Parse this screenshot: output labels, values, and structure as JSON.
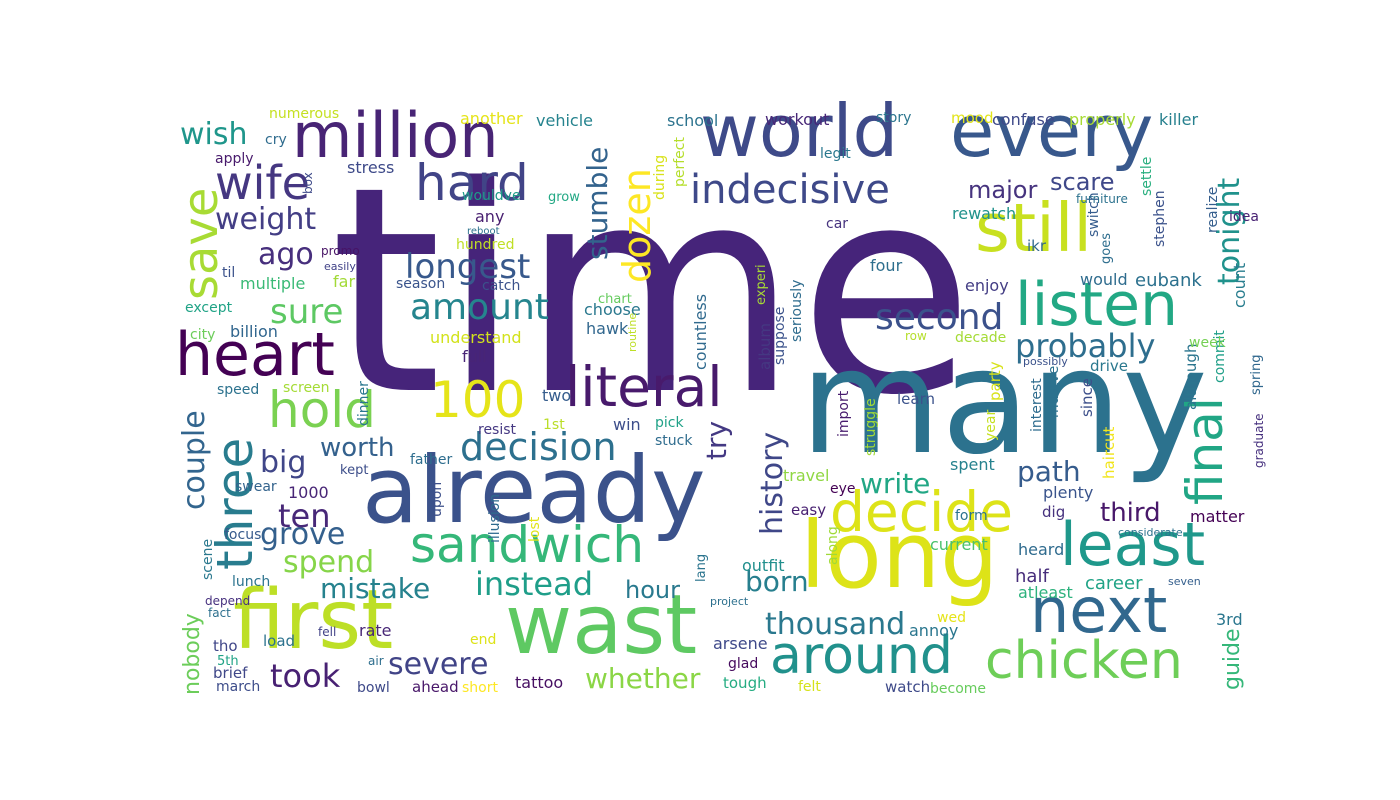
{
  "words": [
    {
      "text": "time",
      "color": "#46247a"
    },
    {
      "text": "many",
      "color": "#2c728e"
    },
    {
      "text": "already",
      "color": "#3b528b"
    },
    {
      "text": "long",
      "color": "#dde318"
    },
    {
      "text": "first",
      "color": "#bddf26"
    },
    {
      "text": "wast",
      "color": "#5ec962"
    },
    {
      "text": "world",
      "color": "#3e4a89"
    },
    {
      "text": "every",
      "color": "#38588c"
    },
    {
      "text": "still",
      "color": "#c8e020"
    },
    {
      "text": "million",
      "color": "#482475"
    },
    {
      "text": "heart",
      "color": "#440154"
    },
    {
      "text": "literal",
      "color": "#481a6c"
    },
    {
      "text": "hard",
      "color": "#414487"
    },
    {
      "text": "wife",
      "color": "#453781"
    },
    {
      "text": "next",
      "color": "#31688e"
    },
    {
      "text": "around",
      "color": "#21918c"
    },
    {
      "text": "chicken",
      "color": "#6ece58"
    },
    {
      "text": "least",
      "color": "#1f988b"
    },
    {
      "text": "sandwich",
      "color": "#35b779"
    },
    {
      "text": "decide",
      "color": "#dde318"
    },
    {
      "text": "listen",
      "color": "#22a884"
    },
    {
      "text": "100",
      "color": "#e5e419"
    },
    {
      "text": "hold",
      "color": "#7ad151"
    },
    {
      "text": "three",
      "color": "#287c8e"
    },
    {
      "text": "save",
      "color": "#a8db34"
    },
    {
      "text": "final",
      "color": "#21a685"
    },
    {
      "text": "indecisive",
      "color": "#3e4989"
    },
    {
      "text": "decision",
      "color": "#2d708e"
    },
    {
      "text": "dozen",
      "color": "#fde725"
    },
    {
      "text": "amount",
      "color": "#25858e"
    },
    {
      "text": "second",
      "color": "#3b518b"
    },
    {
      "text": "longest",
      "color": "#38598c"
    },
    {
      "text": "sure",
      "color": "#5dc863"
    },
    {
      "text": "probably",
      "color": "#2e6e8e"
    },
    {
      "text": "instead",
      "color": "#1f9e89"
    },
    {
      "text": "mistake",
      "color": "#26828e"
    },
    {
      "text": "spend",
      "color": "#86d549"
    },
    {
      "text": "thousand",
      "color": "#2a788e"
    },
    {
      "text": "tonight",
      "color": "#20928c"
    },
    {
      "text": "weight",
      "color": "#433e85"
    },
    {
      "text": "ago",
      "color": "#472f7d"
    },
    {
      "text": "wish",
      "color": "#1f968b"
    },
    {
      "text": "couple",
      "color": "#32658e"
    },
    {
      "text": "big",
      "color": "#404688"
    },
    {
      "text": "worth",
      "color": "#34618d"
    },
    {
      "text": "grove",
      "color": "#34608d"
    },
    {
      "text": "ten",
      "color": "#482878"
    },
    {
      "text": "took",
      "color": "#482173"
    },
    {
      "text": "severe",
      "color": "#414487"
    },
    {
      "text": "whether",
      "color": "#8bd646"
    },
    {
      "text": "born",
      "color": "#277f8e"
    },
    {
      "text": "history",
      "color": "#3f4788"
    },
    {
      "text": "try",
      "color": "#443983"
    },
    {
      "text": "stumble",
      "color": "#33638d"
    },
    {
      "text": "path",
      "color": "#365c8d"
    },
    {
      "text": "write",
      "color": "#22a785"
    },
    {
      "text": "third",
      "color": "#48186a"
    },
    {
      "text": "major",
      "color": "#46337e"
    },
    {
      "text": "scare",
      "color": "#3f4889"
    },
    {
      "text": "hour",
      "color": "#29798e"
    },
    {
      "text": "nobody",
      "color": "#6ccd5a"
    },
    {
      "text": "guide",
      "color": "#35b779"
    },
    {
      "text": "half",
      "color": "#472d7b"
    },
    {
      "text": "career",
      "color": "#20a386"
    },
    {
      "text": "atleast",
      "color": "#2db27d"
    },
    {
      "text": "3rd",
      "color": "#2a768e"
    },
    {
      "text": "eubank",
      "color": "#2c718e"
    },
    {
      "text": "would",
      "color": "#2f6c8e"
    },
    {
      "text": "enjoy",
      "color": "#433d84"
    },
    {
      "text": "four",
      "color": "#2e6f8e"
    },
    {
      "text": "multiple",
      "color": "#3aba76"
    },
    {
      "text": "far",
      "color": "#a2da37"
    },
    {
      "text": "billion",
      "color": "#31668e"
    },
    {
      "text": "city",
      "color": "#6ccd5a"
    },
    {
      "text": "except",
      "color": "#20a386"
    },
    {
      "text": "speed",
      "color": "#2c728e"
    },
    {
      "text": "screen",
      "color": "#a5db36"
    },
    {
      "text": "dinner",
      "color": "#2a778e"
    },
    {
      "text": "father",
      "color": "#2e6d8e"
    },
    {
      "text": "1000",
      "color": "#482576"
    },
    {
      "text": "kept",
      "color": "#3d4e8a"
    },
    {
      "text": "swear",
      "color": "#33638d"
    },
    {
      "text": "upon",
      "color": "#3c4f8a"
    },
    {
      "text": "scene",
      "color": "#2a788e"
    },
    {
      "text": "focus",
      "color": "#375a8c"
    },
    {
      "text": "lunch",
      "color": "#2c738e"
    },
    {
      "text": "depend",
      "color": "#46307e"
    },
    {
      "text": "fact",
      "color": "#2d708e"
    },
    {
      "text": "tho",
      "color": "#404688"
    },
    {
      "text": "5th",
      "color": "#20a386"
    },
    {
      "text": "brief",
      "color": "#3f4788"
    },
    {
      "text": "march",
      "color": "#3d4d8a"
    },
    {
      "text": "load",
      "color": "#2c728e"
    },
    {
      "text": "fell",
      "color": "#414287"
    },
    {
      "text": "rate",
      "color": "#482777"
    },
    {
      "text": "air",
      "color": "#2e6e8e"
    },
    {
      "text": "bowl",
      "color": "#3e4989"
    },
    {
      "text": "ahead",
      "color": "#481769"
    },
    {
      "text": "short",
      "color": "#fde725"
    },
    {
      "text": "tattoo",
      "color": "#471063"
    },
    {
      "text": "end",
      "color": "#dde318"
    },
    {
      "text": "lost",
      "color": "#e2e418"
    },
    {
      "text": "illusion",
      "color": "#2f6b8e"
    },
    {
      "text": "win",
      "color": "#3d4e8a"
    },
    {
      "text": "pick",
      "color": "#1fa187"
    },
    {
      "text": "stuck",
      "color": "#2f6c8e"
    },
    {
      "text": "resist",
      "color": "#453882"
    },
    {
      "text": "1st",
      "color": "#bade28"
    },
    {
      "text": "two",
      "color": "#365d8d"
    },
    {
      "text": "full",
      "color": "#482576"
    },
    {
      "text": "understand",
      "color": "#d2e21b"
    },
    {
      "text": "hawk",
      "color": "#31678e"
    },
    {
      "text": "choose",
      "color": "#2a788e"
    },
    {
      "text": "chart",
      "color": "#65cb5e"
    },
    {
      "text": "catch",
      "color": "#3b528b"
    },
    {
      "text": "season",
      "color": "#3a548c"
    },
    {
      "text": "hundred",
      "color": "#c0df25"
    },
    {
      "text": "any",
      "color": "#481f70"
    },
    {
      "text": "wouldve",
      "color": "#1e9c89"
    },
    {
      "text": "stress",
      "color": "#3e4a89"
    },
    {
      "text": "grow",
      "color": "#22a884"
    },
    {
      "text": "during",
      "color": "#d8e219"
    },
    {
      "text": "perfect",
      "color": "#b5de2b"
    },
    {
      "text": "countless",
      "color": "#306a8e"
    },
    {
      "text": "album",
      "color": "#453882"
    },
    {
      "text": "experi",
      "color": "#a8db34"
    },
    {
      "text": "routine",
      "color": "#bddf26"
    },
    {
      "text": "suppose",
      "color": "#3b528b"
    },
    {
      "text": "seriously",
      "color": "#2f6c8e"
    },
    {
      "text": "outfit",
      "color": "#218f8d"
    },
    {
      "text": "lang",
      "color": "#2b748e"
    },
    {
      "text": "arsene",
      "color": "#3e4989"
    },
    {
      "text": "glad",
      "color": "#460b5e"
    },
    {
      "text": "tough",
      "color": "#25ac82"
    },
    {
      "text": "felt",
      "color": "#d5e21a"
    },
    {
      "text": "project",
      "color": "#2d708e"
    },
    {
      "text": "wed",
      "color": "#e5e419"
    },
    {
      "text": "annoy",
      "color": "#2a768e"
    },
    {
      "text": "along",
      "color": "#a0da39"
    },
    {
      "text": "current",
      "color": "#4ac16d"
    },
    {
      "text": "easy",
      "color": "#482071"
    },
    {
      "text": "eye",
      "color": "#440154"
    },
    {
      "text": "travel",
      "color": "#90d743"
    },
    {
      "text": "import",
      "color": "#481c6e"
    },
    {
      "text": "struggle",
      "color": "#a2da37"
    },
    {
      "text": "learn",
      "color": "#3b528b"
    },
    {
      "text": "year",
      "color": "#c5e021"
    },
    {
      "text": "party",
      "color": "#d8e219"
    },
    {
      "text": "spent",
      "color": "#26828e"
    },
    {
      "text": "form",
      "color": "#2c728e"
    },
    {
      "text": "heard",
      "color": "#2f6b8e"
    },
    {
      "text": "watch",
      "color": "#3e4a89"
    },
    {
      "text": "become",
      "color": "#67cc5c"
    },
    {
      "text": "dig",
      "color": "#46327e"
    },
    {
      "text": "haircut",
      "color": "#f1e51d"
    },
    {
      "text": "plenty",
      "color": "#3a548c"
    },
    {
      "text": "since",
      "color": "#3c4f8a"
    },
    {
      "text": "mustve",
      "color": "#2c718e"
    },
    {
      "text": "interest",
      "color": "#2f6c8e"
    },
    {
      "text": "matter",
      "color": "#440154"
    },
    {
      "text": "considerate",
      "color": "#2c728e"
    },
    {
      "text": "seven",
      "color": "#355f8d"
    },
    {
      "text": "although",
      "color": "#2b758e"
    },
    {
      "text": "commit",
      "color": "#1f9f88"
    },
    {
      "text": "graduate",
      "color": "#46307e"
    },
    {
      "text": "spring",
      "color": "#31688e"
    },
    {
      "text": "possibly",
      "color": "#3b528b"
    },
    {
      "text": "drive",
      "color": "#2a788e"
    },
    {
      "text": "week",
      "color": "#75d054"
    },
    {
      "text": "decade",
      "color": "#a5db36"
    },
    {
      "text": "row",
      "color": "#b5de2b"
    },
    {
      "text": "count",
      "color": "#287d8e"
    },
    {
      "text": "ikr",
      "color": "#31688e"
    },
    {
      "text": "rewatch",
      "color": "#20928c"
    },
    {
      "text": "car",
      "color": "#46337e"
    },
    {
      "text": "legit",
      "color": "#2a788e"
    },
    {
      "text": "switch",
      "color": "#365c8d"
    },
    {
      "text": "stephen",
      "color": "#3b528b"
    },
    {
      "text": "goes",
      "color": "#2e6e8e"
    },
    {
      "text": "realize",
      "color": "#355e8d"
    },
    {
      "text": "idea",
      "color": "#482173"
    },
    {
      "text": "furniture",
      "color": "#2c728e"
    },
    {
      "text": "settle",
      "color": "#29af7f"
    },
    {
      "text": "story",
      "color": "#2b758e"
    },
    {
      "text": "mood",
      "color": "#e2e418"
    },
    {
      "text": "confuse",
      "color": "#3e4989"
    },
    {
      "text": "properly",
      "color": "#a8db34"
    },
    {
      "text": "killer",
      "color": "#27808e"
    },
    {
      "text": "workout",
      "color": "#482878"
    },
    {
      "text": "school",
      "color": "#2c738e"
    },
    {
      "text": "vehicle",
      "color": "#25838e"
    },
    {
      "text": "another",
      "color": "#e5e419"
    },
    {
      "text": "numerous",
      "color": "#c5e021"
    },
    {
      "text": "cry",
      "color": "#2f6c8e"
    },
    {
      "text": "box",
      "color": "#3e4a89"
    },
    {
      "text": "apply",
      "color": "#481a6c"
    },
    {
      "text": "promo",
      "color": "#471365"
    },
    {
      "text": "easily",
      "color": "#414287"
    },
    {
      "text": "til",
      "color": "#3b528b"
    },
    {
      "text": "reboot",
      "color": "#2c728e"
    }
  ]
}
